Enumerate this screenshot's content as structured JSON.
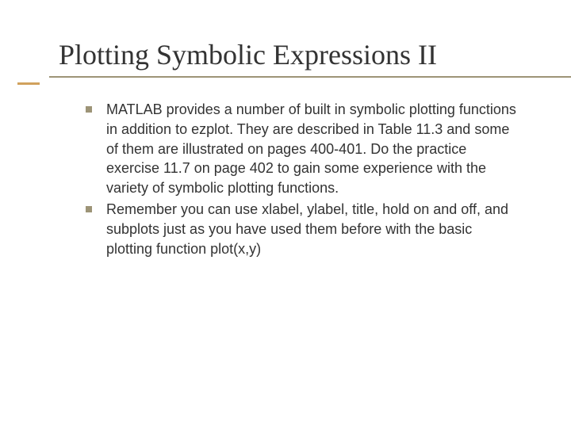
{
  "slide": {
    "title": "Plotting Symbolic Expressions II",
    "title_font_family": "Times New Roman",
    "title_fontsize": 36,
    "title_color": "#333333",
    "underline_color": "#9d9477",
    "accent_color": "#d1a15d",
    "background_color": "#ffffff",
    "bullets": [
      {
        "marker_color": "#9d9477",
        "text": "MATLAB provides a number of built in symbolic plotting functions in addition to ezplot. They are described in Table 11.3 and some of them are illustrated on pages 400-401. Do the practice exercise 11.7 on page 402 to gain some experience with the variety of symbolic plotting functions."
      },
      {
        "marker_color": "#9d9477",
        "text": "Remember you can use xlabel, ylabel, title, hold on and off, and subplots just as you have used them before with the basic plotting function plot(x,y)"
      }
    ],
    "body_font_family": "Verdana",
    "body_fontsize": 18,
    "body_color": "#333333"
  }
}
